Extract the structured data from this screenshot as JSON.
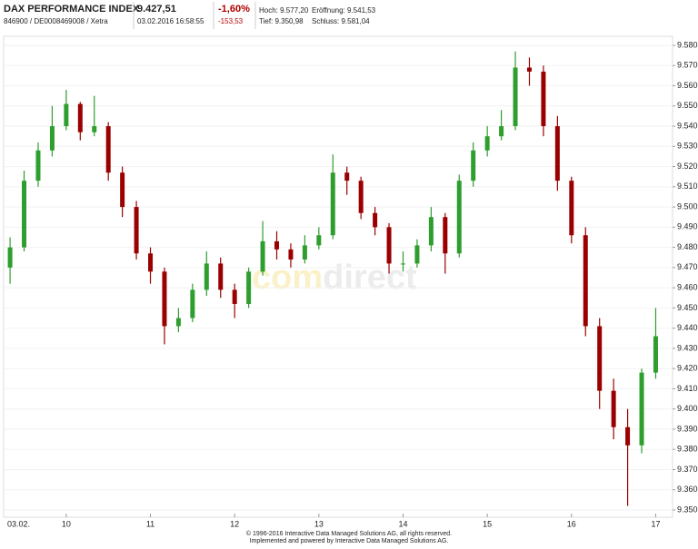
{
  "header": {
    "name": "DAX PERFORMANCE INDEX",
    "ids": "846900 / DE0008469008 / Xetra",
    "price": "9.427,51",
    "timestamp": "03.02.2016 16:58:55",
    "change_pct": "-1,60%",
    "change_abs": "-153,53",
    "high": "Hoch: 9.577,20",
    "low": "Tief: 9.350,98",
    "open": "Eröffnung: 9.541,53",
    "close": "Schluss: 9.581,04"
  },
  "footer": {
    "line1": "© 1996-2016 Interactive Data Managed Solutions AG, all rights reserved.",
    "line2": "Implemented and powered by  Interactive Data Managed Solutions AG."
  },
  "watermark": {
    "prefix": "com",
    "suffix": "direct"
  },
  "chart_data": {
    "type": "candlestick",
    "date_label": "03.02.",
    "up_color": "#2e9e2e",
    "down_color": "#9b0000",
    "grid": true,
    "xlim": [
      558,
      1032
    ],
    "ylim": [
      9350,
      9580
    ],
    "xticks": [
      {
        "value": 600,
        "label": "10"
      },
      {
        "value": 660,
        "label": "11"
      },
      {
        "value": 720,
        "label": "12"
      },
      {
        "value": 780,
        "label": "13"
      },
      {
        "value": 840,
        "label": "14"
      },
      {
        "value": 900,
        "label": "15"
      },
      {
        "value": 960,
        "label": "16"
      },
      {
        "value": 1020,
        "label": "17"
      }
    ],
    "yticks": [
      {
        "value": 9350,
        "label": "9.350"
      },
      {
        "value": 9360,
        "label": "9.360"
      },
      {
        "value": 9370,
        "label": "9.370"
      },
      {
        "value": 9380,
        "label": "9.380"
      },
      {
        "value": 9390,
        "label": "9.390"
      },
      {
        "value": 9400,
        "label": "9.400"
      },
      {
        "value": 9410,
        "label": "9.410"
      },
      {
        "value": 9420,
        "label": "9.420"
      },
      {
        "value": 9430,
        "label": "9.430"
      },
      {
        "value": 9440,
        "label": "9.440"
      },
      {
        "value": 9450,
        "label": "9.450"
      },
      {
        "value": 9460,
        "label": "9.460"
      },
      {
        "value": 9470,
        "label": "9.470"
      },
      {
        "value": 9480,
        "label": "9.480"
      },
      {
        "value": 9490,
        "label": "9.490"
      },
      {
        "value": 9500,
        "label": "9.500"
      },
      {
        "value": 9510,
        "label": "9.510"
      },
      {
        "value": 9520,
        "label": "9.520"
      },
      {
        "value": 9530,
        "label": "9.530"
      },
      {
        "value": 9540,
        "label": "9.540"
      },
      {
        "value": 9550,
        "label": "9.550"
      },
      {
        "value": 9560,
        "label": "9.560"
      },
      {
        "value": 9570,
        "label": "9.570"
      },
      {
        "value": 9580,
        "label": "9.580"
      }
    ],
    "x": [
      560,
      570,
      580,
      590,
      600,
      610,
      620,
      630,
      640,
      650,
      660,
      670,
      680,
      690,
      700,
      710,
      720,
      730,
      740,
      750,
      760,
      770,
      780,
      790,
      800,
      810,
      820,
      830,
      840,
      850,
      860,
      870,
      880,
      890,
      900,
      910,
      920,
      930,
      940,
      950,
      960,
      970,
      980,
      990,
      1000,
      1010,
      1020
    ],
    "open": [
      9470,
      9480,
      9513,
      9528,
      9540,
      9551,
      9537,
      9540,
      9517,
      9500,
      9477,
      9468,
      9441,
      9445,
      9459,
      9472,
      9459,
      9452,
      9468,
      9483,
      9479,
      9474,
      9481,
      9486,
      9517,
      9513,
      9497,
      9490,
      9472,
      9472,
      9481,
      9495,
      9477,
      9513,
      9528,
      9535,
      9540,
      9569,
      9567,
      9540,
      9513,
      9486,
      9441,
      9409,
      9391,
      9382,
      9418
    ],
    "high": [
      9485,
      9518,
      9532,
      9550,
      9558,
      9552,
      9555,
      9542,
      9520,
      9503,
      9480,
      9470,
      9450,
      9462,
      9478,
      9475,
      9462,
      9470,
      9493,
      9488,
      9482,
      9486,
      9490,
      9526,
      9520,
      9515,
      9500,
      9492,
      9478,
      9484,
      9500,
      9497,
      9516,
      9532,
      9540,
      9548,
      9577,
      9574,
      9570,
      9545,
      9515,
      9490,
      9445,
      9415,
      9400,
      9420,
      9450
    ],
    "low": [
      9462,
      9478,
      9510,
      9525,
      9538,
      9533,
      9535,
      9513,
      9495,
      9474,
      9462,
      9432,
      9438,
      9443,
      9456,
      9455,
      9445,
      9450,
      9466,
      9474,
      9470,
      9472,
      9479,
      9484,
      9506,
      9494,
      9486,
      9467,
      9468,
      9470,
      9478,
      9467,
      9475,
      9510,
      9525,
      9533,
      9538,
      9560,
      9535,
      9508,
      9482,
      9436,
      9400,
      9385,
      9352,
      9378,
      9415
    ],
    "close": [
      9480,
      9513,
      9528,
      9540,
      9551,
      9537,
      9540,
      9517,
      9500,
      9477,
      9468,
      9441,
      9445,
      9459,
      9472,
      9459,
      9452,
      9468,
      9483,
      9479,
      9474,
      9481,
      9486,
      9517,
      9513,
      9497,
      9490,
      9472,
      9472,
      9481,
      9495,
      9477,
      9513,
      9528,
      9535,
      9540,
      9569,
      9567,
      9540,
      9513,
      9486,
      9441,
      9409,
      9391,
      9382,
      9418,
      9436
    ]
  }
}
